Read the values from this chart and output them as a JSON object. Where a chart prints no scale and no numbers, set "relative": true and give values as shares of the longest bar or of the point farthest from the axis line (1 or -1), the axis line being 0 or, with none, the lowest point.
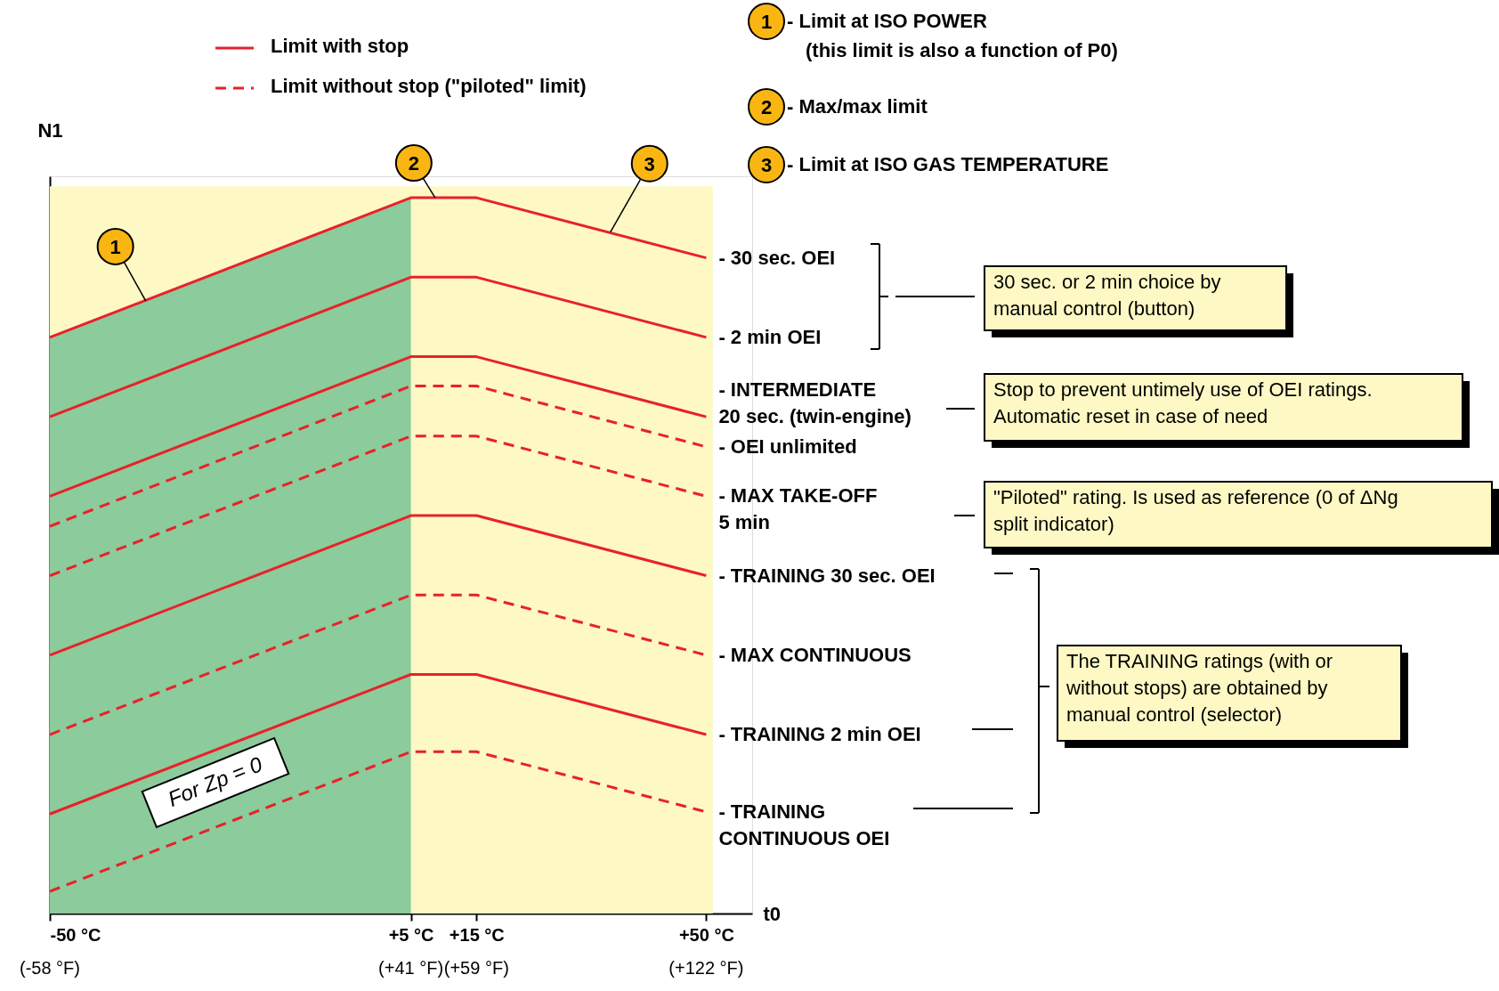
{
  "chart_data": {
    "type": "line",
    "relative": true,
    "xlabel": "t0",
    "ylabel": "N1",
    "xlim": [
      -50,
      57
    ],
    "xticks": [
      {
        "value": -50,
        "label": "-50 °C"
      },
      {
        "value": 5,
        "label": "+5 °C"
      },
      {
        "value": 15,
        "label": "+15 °C"
      },
      {
        "value": 50,
        "label": "+50 °C"
      }
    ],
    "x": [
      -50,
      5,
      15,
      50
    ],
    "bands": [
      {
        "axis": "x",
        "from": -50,
        "to": 51,
        "color": "#fdf8c4"
      }
    ],
    "series": [
      {
        "type": "area",
        "color": "#8ccb9b",
        "x": [
          -50,
          5
        ],
        "values": [
          0.805,
          1
        ]
      },
      {
        "name": "- 30 sec. OEI",
        "color": "#e8212b",
        "line_style": "solid",
        "values": [
          0.805,
          1,
          1,
          0.916
        ]
      },
      {
        "name": "- 2 min OEI",
        "color": "#e8212b",
        "line_style": "solid",
        "values": [
          0.694,
          0.889,
          0.889,
          0.805
        ]
      },
      {
        "name": "- INTERMEDIATE\n20 sec. (twin-engine)",
        "color": "#e8212b",
        "line_style": "solid",
        "values": [
          0.583,
          0.778,
          0.778,
          0.694
        ]
      },
      {
        "name": "- OEI unlimited",
        "color": "#e8212b",
        "line_style": "dashed",
        "values": [
          0.541,
          0.737,
          0.737,
          0.652
        ]
      },
      {
        "name": "- MAX TAKE-OFF\n5 min",
        "color": "#e8212b",
        "line_style": "dashed",
        "values": [
          0.472,
          0.667,
          0.667,
          0.583
        ]
      },
      {
        "name": "- TRAINING 30 sec. OEI",
        "color": "#e8212b",
        "line_style": "solid",
        "values": [
          0.361,
          0.556,
          0.556,
          0.472
        ]
      },
      {
        "name": "- MAX CONTINUOUS",
        "color": "#e8212b",
        "line_style": "dashed",
        "values": [
          0.25,
          0.445,
          0.445,
          0.361
        ]
      },
      {
        "name": "- TRAINING 2 min OEI",
        "color": "#e8212b",
        "line_style": "solid",
        "values": [
          0.139,
          0.334,
          0.334,
          0.25
        ]
      },
      {
        "name": "- TRAINING\nCONTINUOUS OEI",
        "color": "#e8212b",
        "line_style": "dashed",
        "values": [
          0.031,
          0.226,
          0.226,
          0.142
        ]
      }
    ],
    "annotations": [
      "Limit with stop",
      "Limit without stop (\"piloted\" limit)",
      {
        "text": "1",
        "x": -35.4,
        "y": 0.856
      },
      {
        "text": "2",
        "x": 8.7,
        "y": 1
      },
      {
        "text": "3",
        "x": 35.4,
        "y": 0.952
      },
      "- Limit at ISO POWER",
      "(this limit is also a function of P0)",
      "- Max/max limit",
      "- Limit at ISO GAS TEMPERATURE",
      "30 sec. or 2 min choice by\nmanual control (button)",
      "Stop to prevent untimely use of OEI ratings.\nAutomatic reset in case of need",
      "\"Piloted\" rating. Is used as reference (0 of ΔNg\nsplit indicator)",
      "The TRAINING ratings (with or\nwithout stops) are obtained by\nmanual control (selector)",
      "For Zp = 0",
      "(-58 °F)",
      "(+41 °F)",
      "(+59 °F)",
      "(+122 °F)"
    ]
  }
}
